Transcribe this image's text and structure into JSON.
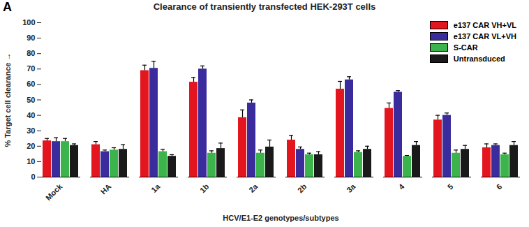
{
  "chart_data": {
    "type": "bar",
    "title": "Clearance of transiently transfected HEK-293T cells",
    "annotations": [
      "A"
    ],
    "x_label": "HCV/E1-E2 genotypes/subtypes",
    "y_label": "% Target cell clearance",
    "categories": [
      "Mock",
      "HA",
      "1a",
      "1b",
      "2a",
      "2b",
      "3a",
      "4",
      "5",
      "6"
    ],
    "series": [
      {
        "name": "e137 CAR VH+VL",
        "color": "#e3151e",
        "values": [
          23.5,
          21,
          69,
          61.5,
          38.5,
          24,
          57,
          44.5,
          37,
          19
        ],
        "errors": [
          1.5,
          2,
          3.5,
          3,
          5,
          3,
          5,
          3.5,
          3,
          2.5
        ]
      },
      {
        "name": "e137 CAR VL+VH",
        "color": "#3b2c9e",
        "values": [
          23,
          16.5,
          70.5,
          70,
          48,
          18,
          63,
          55,
          40,
          20.5
        ],
        "errors": [
          2.5,
          1,
          4.5,
          2,
          2,
          1.5,
          2,
          1,
          1.5,
          1
        ]
      },
      {
        "name": "S-CAR",
        "color": "#3cb44b",
        "values": [
          23,
          17.5,
          16.5,
          15.5,
          15.5,
          14.5,
          16,
          13.5,
          15.5,
          14.5
        ],
        "errors": [
          2,
          1.5,
          1.5,
          1.5,
          2,
          1,
          1,
          0.5,
          2,
          1
        ]
      },
      {
        "name": "Untransduced",
        "color": "#1a1a1a",
        "values": [
          20.5,
          18,
          13.5,
          18.5,
          19.5,
          14.5,
          18,
          20.5,
          18,
          20.5
        ],
        "errors": [
          1,
          3,
          1,
          3.5,
          4.5,
          2,
          2,
          2.5,
          2.5,
          2.5
        ]
      }
    ],
    "ylim": [
      0,
      100
    ],
    "yticks": [
      0,
      10,
      20,
      30,
      40,
      50,
      60,
      70,
      80,
      90,
      100
    ],
    "grid": false,
    "legend": "top-right"
  }
}
